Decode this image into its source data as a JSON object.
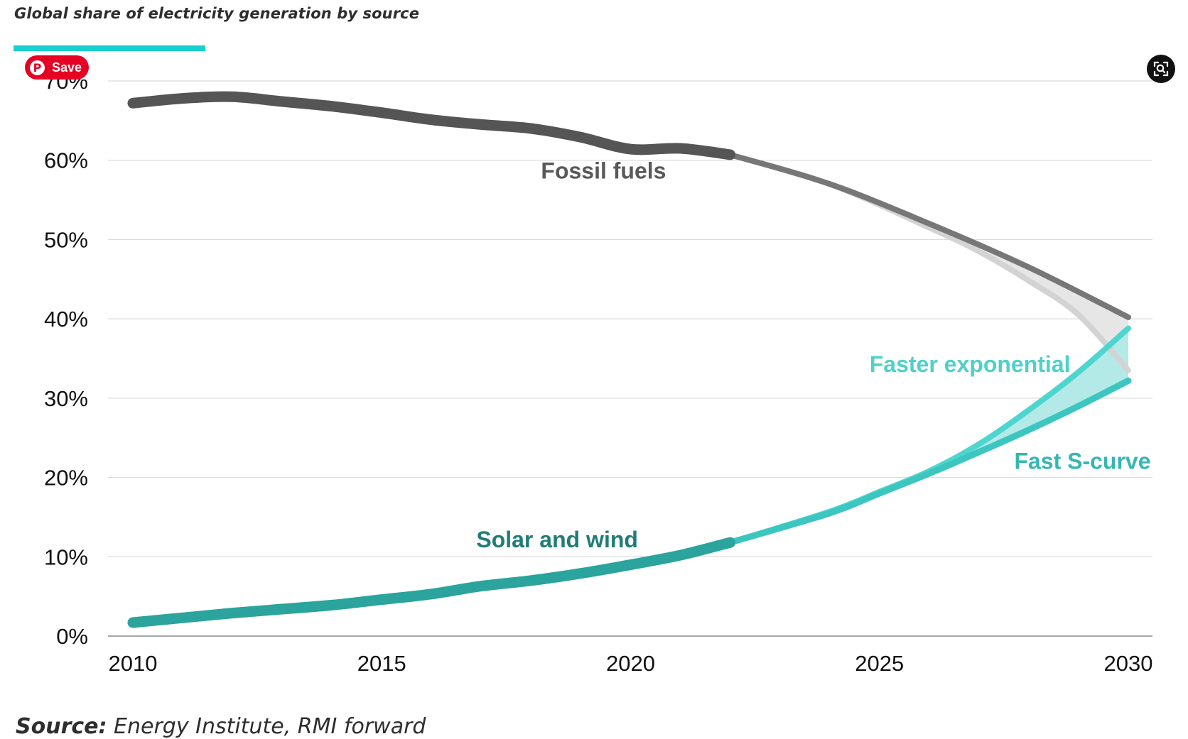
{
  "title": "Global share of electricity generation by source",
  "accent_color": "#18d0d0",
  "source": {
    "label": "Source:",
    "text": "Energy Institute, RMI forward"
  },
  "pinterest_button": {
    "label": "Save",
    "icon": "pinterest-icon",
    "color": "#e60023"
  },
  "zoom_button": {
    "icon": "zoom-search-icon"
  },
  "chart_data": {
    "type": "line",
    "title": "Global share of electricity generation by source",
    "xlabel": "",
    "ylabel": "",
    "xlim": [
      2010,
      2030
    ],
    "ylim": [
      0,
      70
    ],
    "x_ticks": [
      "2010",
      "2015",
      "2020",
      "2025",
      "2030"
    ],
    "y_ticks": [
      "0%",
      "10%",
      "20%",
      "30%",
      "40%",
      "50%",
      "60%",
      "70%"
    ],
    "grid": true,
    "series": [
      {
        "name": "Fossil fuels",
        "role": "historical",
        "color": "#555555",
        "x": [
          2010,
          2011,
          2012,
          2013,
          2014,
          2015,
          2016,
          2017,
          2018,
          2019,
          2020,
          2021,
          2022
        ],
        "y": [
          67.2,
          67.8,
          68.0,
          67.4,
          66.8,
          66.0,
          65.1,
          64.5,
          64.0,
          62.9,
          61.4,
          61.5,
          60.7
        ]
      },
      {
        "name": "",
        "role": "fossil projection (S-curve)",
        "color": "#777777",
        "x": [
          2022,
          2024,
          2026,
          2028,
          2030
        ],
        "y": [
          60.7,
          57.0,
          52.0,
          46.5,
          40.2
        ]
      },
      {
        "name": "",
        "role": "fossil projection (exponential)",
        "color": "#d3d3d3",
        "x": [
          2022,
          2024,
          2026,
          2027,
          2028,
          2029,
          2030
        ],
        "y": [
          60.7,
          57.0,
          51.5,
          48.5,
          44.8,
          40.5,
          33.5
        ]
      },
      {
        "name": "Solar and wind",
        "role": "historical",
        "color": "#2aa49c",
        "x": [
          2010,
          2011,
          2012,
          2013,
          2014,
          2015,
          2016,
          2017,
          2018,
          2019,
          2020,
          2021,
          2022
        ],
        "y": [
          1.7,
          2.3,
          2.9,
          3.4,
          3.9,
          4.6,
          5.3,
          6.3,
          7.0,
          7.9,
          9.0,
          10.2,
          11.8
        ]
      },
      {
        "name": "Faster exponential",
        "role": "projection",
        "color": "#4dd6d0",
        "x": [
          2022,
          2024,
          2025,
          2026,
          2027,
          2028,
          2029,
          2030
        ],
        "y": [
          11.8,
          15.7,
          18.2,
          20.8,
          24.2,
          28.5,
          33.3,
          38.8
        ]
      },
      {
        "name": "Fast S-curve",
        "role": "projection",
        "color": "#3cc6c0",
        "x": [
          2022,
          2024,
          2025,
          2026,
          2027,
          2028,
          2029,
          2030
        ],
        "y": [
          11.8,
          15.5,
          18.0,
          20.5,
          23.2,
          26.0,
          29.0,
          32.2
        ]
      }
    ],
    "labels": [
      {
        "text": "Fossil fuels",
        "color": "#595959"
      },
      {
        "text": "Solar and wind",
        "color": "#217c78"
      },
      {
        "text": "Faster exponential",
        "color": "#4fd0cb"
      },
      {
        "text": "Fast S-curve",
        "color": "#35b7b2"
      }
    ]
  }
}
